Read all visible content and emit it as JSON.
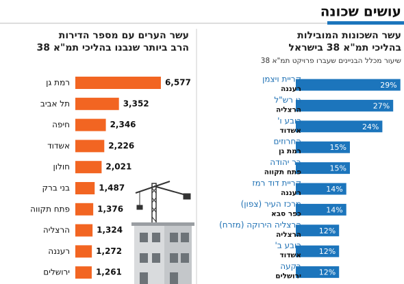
{
  "page_title": "עושים שכונה",
  "chart_data": [
    {
      "type": "bar",
      "title": [
        "עשר השכונות המובילות",
        "בהליכי תמ\"א 38 בישראל"
      ],
      "subtitle": "שיעור מכלל הבניינים שעברו פרויקט תמ\"א 38",
      "categories": [
        "קריית ויצמן",
        "גן רש\"ל",
        "רובע ו'",
        "החרוזים",
        "בר יהודה",
        "קריית דוד רמז",
        "מרכז העיר (צפון)",
        "הרצליה הירוקה (מזרח)",
        "רובע ב'",
        "בקעה"
      ],
      "cities": [
        "רעננה",
        "הרצליה",
        "אשדוד",
        "רמת גן",
        "פתח תקווה",
        "רעננה",
        "כפר סבא",
        "הרצליה",
        "אשדוד",
        "ירושלים"
      ],
      "values": [
        29,
        27,
        24,
        15,
        15,
        14,
        14,
        12,
        12,
        12
      ],
      "value_labels": [
        "29%",
        "27%",
        "24%",
        "15%",
        "15%",
        "14%",
        "14%",
        "12%",
        "12%",
        "12%"
      ],
      "color": "#1c75bc",
      "xlim": [
        0,
        30
      ]
    },
    {
      "type": "bar",
      "title": [
        "עשר הערים עם מספר הדירות",
        "הרב ביותר שנבנו בהליכי תמ\"א 38"
      ],
      "categories": [
        "רמת גן",
        "תל אביב",
        "חיפה",
        "אשדוד",
        "חולון",
        "בני ברק",
        "פתח תקווה",
        "הרצליה",
        "רעננה",
        "ירושלים"
      ],
      "values": [
        6577,
        3352,
        2346,
        2226,
        2021,
        1487,
        1376,
        1324,
        1272,
        1261
      ],
      "value_labels": [
        "6,577",
        "3,352",
        "2,346",
        "2,226",
        "2,021",
        "1,487",
        "1,376",
        "1,324",
        "1,272",
        "1,261"
      ],
      "color": "#f26522",
      "xlim": [
        0,
        7000
      ]
    }
  ]
}
